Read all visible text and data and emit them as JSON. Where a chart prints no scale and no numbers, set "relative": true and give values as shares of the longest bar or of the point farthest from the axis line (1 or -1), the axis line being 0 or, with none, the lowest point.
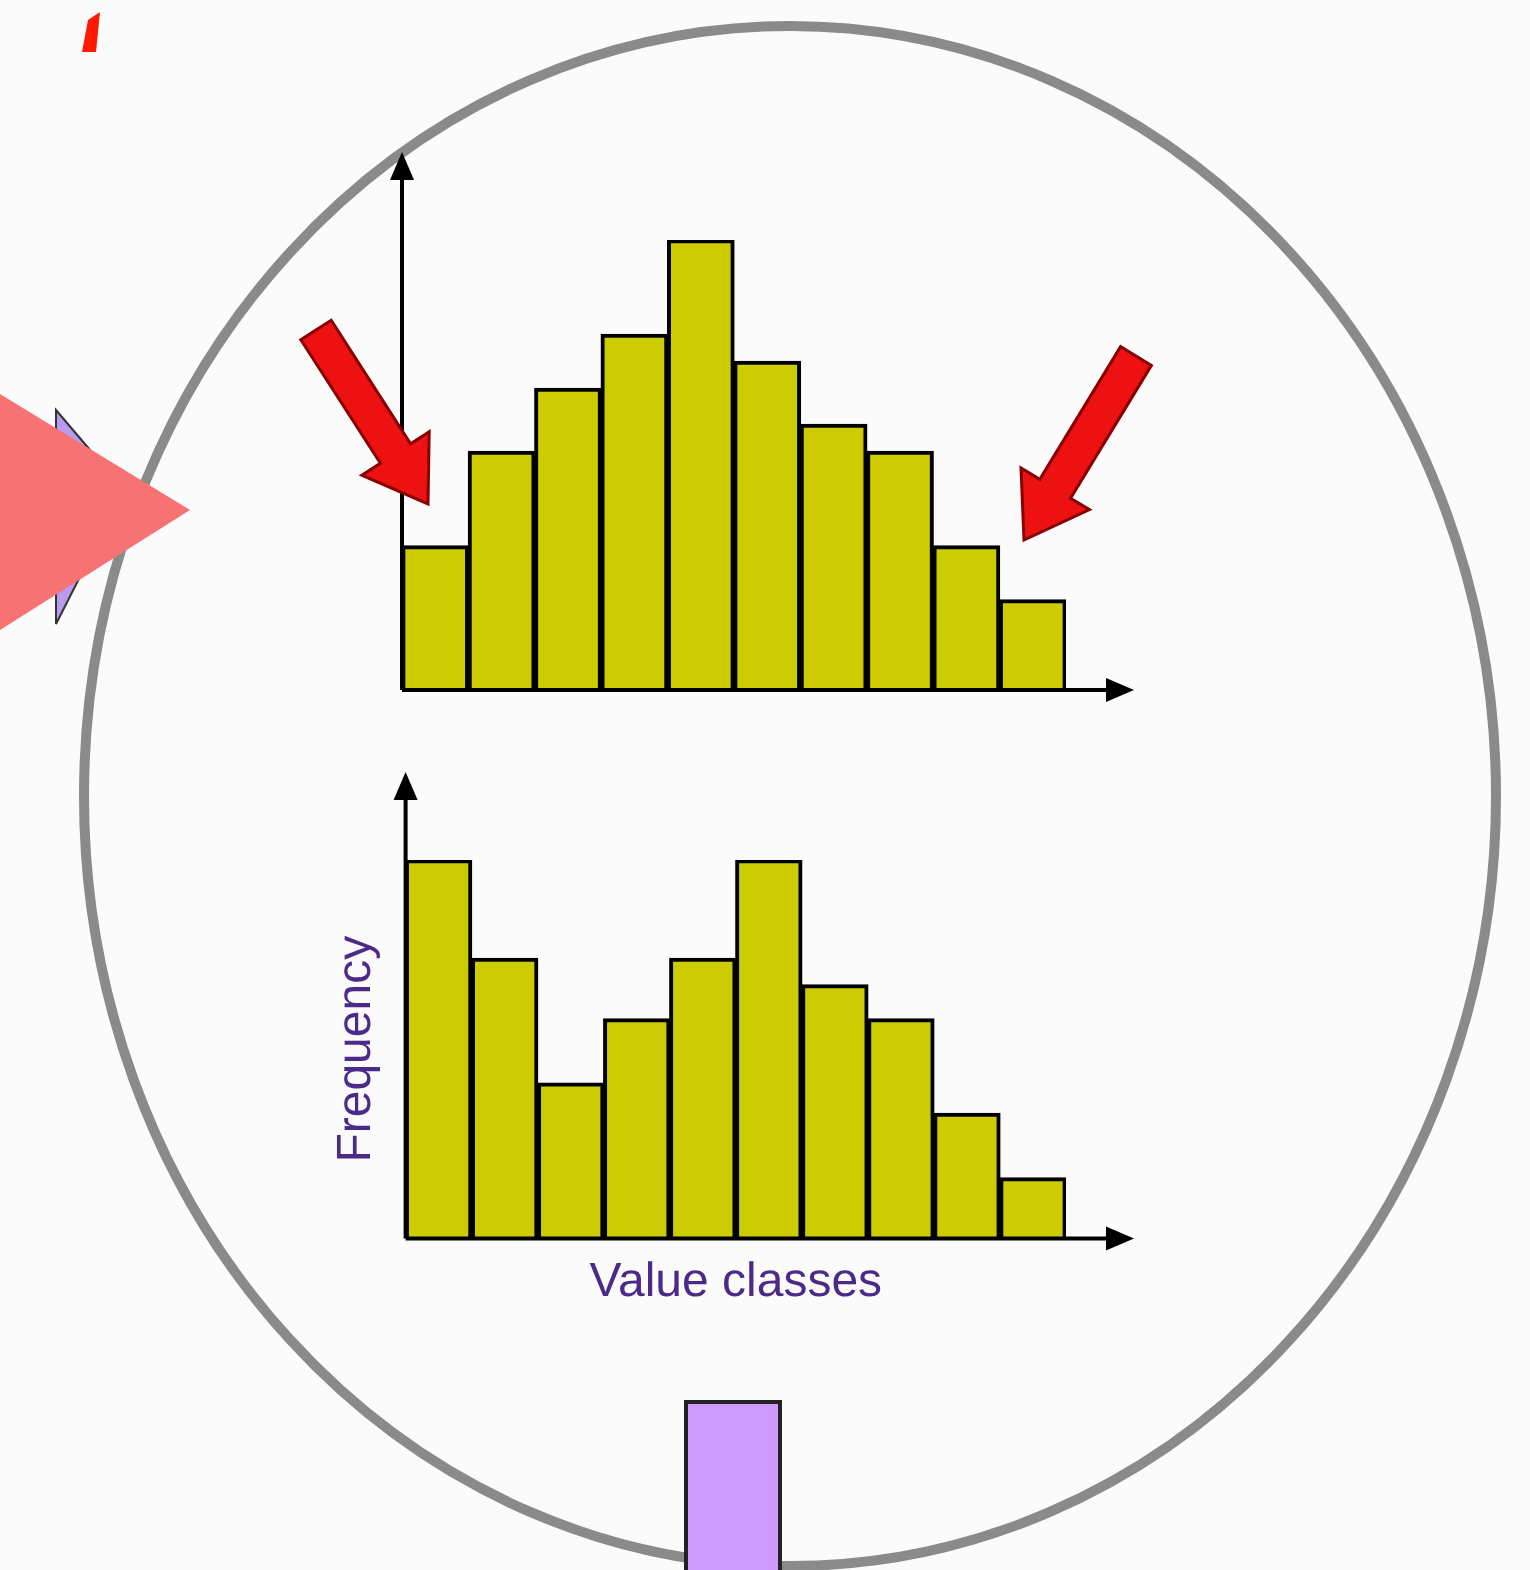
{
  "chart_data": [
    {
      "type": "bar",
      "relative": true,
      "categories": [
        null,
        null,
        null,
        null,
        null,
        null,
        null,
        null,
        null,
        null
      ],
      "color": "#cccc00",
      "values": [
        0.32,
        0.53,
        0.67,
        0.79,
        1,
        0.73,
        0.59,
        0.53,
        0.32,
        0.2
      ]
    },
    {
      "type": "bar",
      "relative": true,
      "ylabel": "Frequency",
      "xlabel": "Value classes",
      "categories": [
        null,
        null,
        null,
        null,
        null,
        null,
        null,
        null,
        null,
        null
      ],
      "color": "#cccc00",
      "values": [
        1,
        0.74,
        0.41,
        0.58,
        0.74,
        1,
        0.67,
        0.58,
        0.33,
        0.16
      ]
    }
  ]
}
